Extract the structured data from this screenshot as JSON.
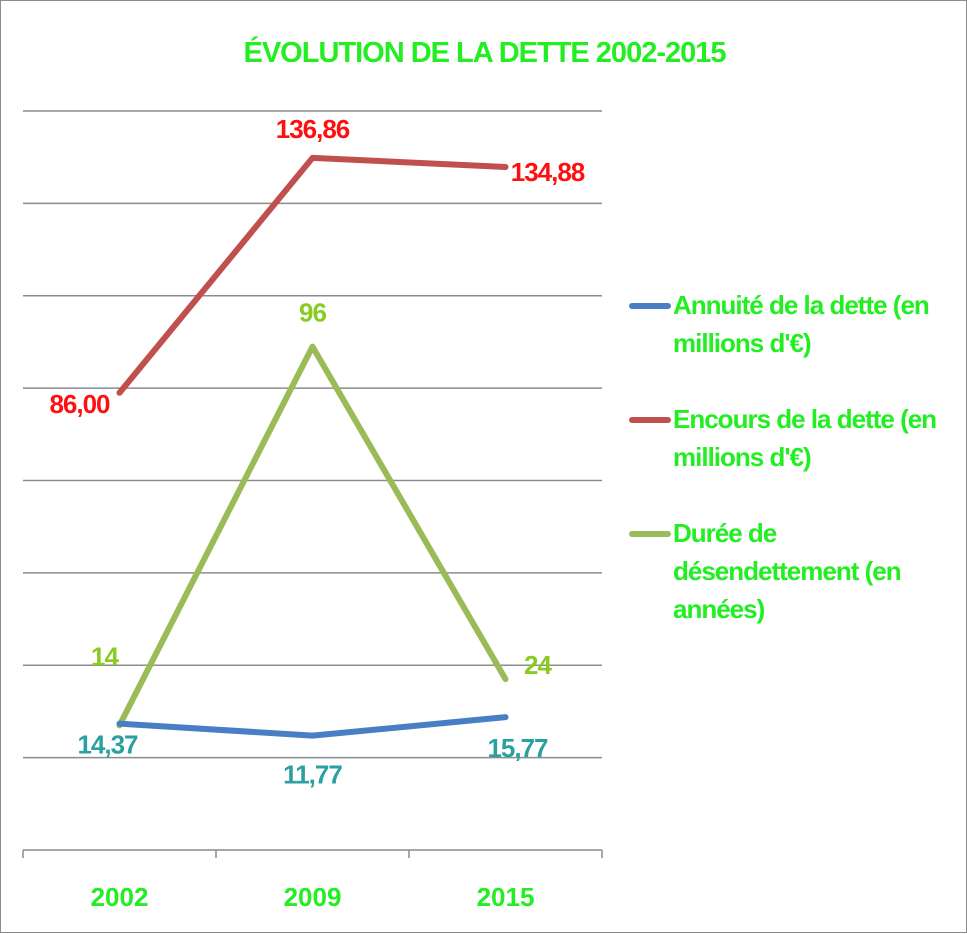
{
  "chart_data": {
    "type": "line",
    "title": "ÉVOLUTION DE LA DETTE 2002-2015",
    "categories": [
      "2002",
      "2009",
      "2015"
    ],
    "gridlines": true,
    "legend_position": "right",
    "colors": {
      "title": "#22ee22",
      "axis_labels": "#22ee22",
      "legend_text": "#22ee22",
      "grid": "#8c8c8c"
    },
    "series": [
      {
        "name": "Annuité de la dette (en millions d'€)",
        "values": [
          14.37,
          11.77,
          15.77
        ],
        "labels": [
          "14,37",
          "11,77",
          "15,77"
        ],
        "color": "#4a7ec4",
        "label_color": "#2aa0a0"
      },
      {
        "name": "Encours de la dette (en millions d'€)",
        "values": [
          86.0,
          136.86,
          134.88
        ],
        "labels": [
          "86,00",
          "136,86",
          "134,88"
        ],
        "color": "#c0504d",
        "label_color": "#ff1010"
      },
      {
        "name": "Durée de désendettement (en années)",
        "values": [
          14,
          96,
          24
        ],
        "labels": [
          "14",
          "96",
          "24"
        ],
        "color": "#9bbb59",
        "label_color": "#88cc22"
      }
    ]
  }
}
